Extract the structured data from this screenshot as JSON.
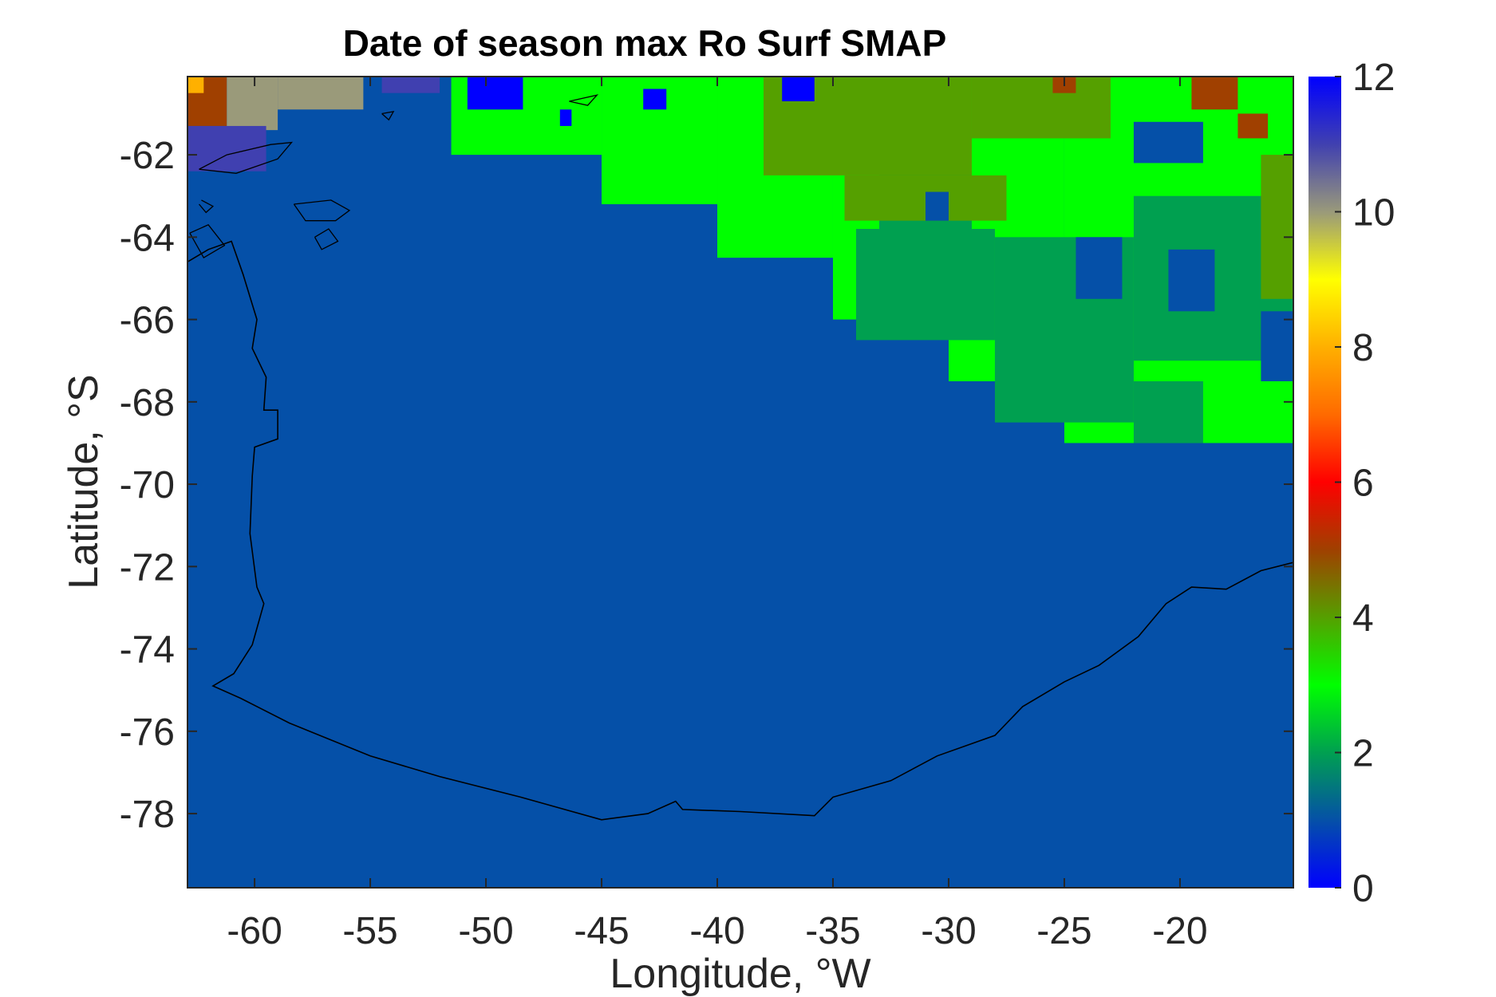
{
  "chart_data": {
    "type": "heatmap",
    "title": "Date of season max Ro Surf SMAP",
    "xlabel": "Longitude, °W",
    "ylabel": "Latitude, °S",
    "xlim": [
      -62.9,
      -15.1
    ],
    "ylim": [
      -79.8,
      -60.1
    ],
    "x_ticks": [
      -60,
      -55,
      -50,
      -45,
      -40,
      -35,
      -30,
      -25,
      -20
    ],
    "x_tick_labels": [
      "-60",
      "-55",
      "-50",
      "-45",
      "-40",
      "-35",
      "-30",
      "-25",
      "-20"
    ],
    "y_ticks": [
      -62,
      -64,
      -66,
      -68,
      -70,
      -72,
      -74,
      -76,
      -78
    ],
    "y_tick_labels": [
      "-62",
      "-64",
      "-66",
      "-68",
      "-70",
      "-72",
      "-74",
      "-76",
      "-78"
    ],
    "colorbar": {
      "min": 0,
      "max": 12,
      "ticks": [
        0,
        2,
        4,
        6,
        8,
        10,
        12
      ],
      "tick_labels": [
        "0",
        "2",
        "4",
        "6",
        "8",
        "10",
        "12"
      ],
      "stops": [
        {
          "value": 0,
          "color": "#0000ff"
        },
        {
          "value": 1,
          "color": "#0550a8"
        },
        {
          "value": 2,
          "color": "#00a050"
        },
        {
          "value": 3,
          "color": "#00ff00"
        },
        {
          "value": 4,
          "color": "#55a000"
        },
        {
          "value": 5,
          "color": "#a04000"
        },
        {
          "value": 6,
          "color": "#ff0000"
        },
        {
          "value": 7,
          "color": "#ff6a00"
        },
        {
          "value": 8,
          "color": "#ffb000"
        },
        {
          "value": 9,
          "color": "#ffff00"
        },
        {
          "value": 10,
          "color": "#9a9a7a"
        },
        {
          "value": 11,
          "color": "#4040b0"
        },
        {
          "value": 12,
          "color": "#0000ff"
        }
      ]
    },
    "background_value": 1,
    "regions": [
      {
        "value": 3,
        "lon": [
          -51.5,
          -45
        ],
        "lat": [
          -62,
          -60.1
        ]
      },
      {
        "value": 3,
        "lon": [
          -45,
          -40
        ],
        "lat": [
          -63.2,
          -60.1
        ]
      },
      {
        "value": 3,
        "lon": [
          -40,
          -35
        ],
        "lat": [
          -64.5,
          -60.1
        ]
      },
      {
        "value": 3,
        "lon": [
          -35,
          -30
        ],
        "lat": [
          -66,
          -60.1
        ]
      },
      {
        "value": 3,
        "lon": [
          -30,
          -25
        ],
        "lat": [
          -67.5,
          -60.1
        ]
      },
      {
        "value": 3,
        "lon": [
          -25,
          -15.1
        ],
        "lat": [
          -69,
          -60.1
        ]
      },
      {
        "value": 2,
        "lon": [
          -34,
          -28
        ],
        "lat": [
          -66.5,
          -63.8
        ]
      },
      {
        "value": 2,
        "lon": [
          -28,
          -22
        ],
        "lat": [
          -68.5,
          -64
        ]
      },
      {
        "value": 2,
        "lon": [
          -22,
          -15.1
        ],
        "lat": [
          -67,
          -63
        ]
      },
      {
        "value": 2,
        "lon": [
          -33,
          -29
        ],
        "lat": [
          -64,
          -62.4
        ]
      },
      {
        "value": 2,
        "lon": [
          -22,
          -19
        ],
        "lat": [
          -69,
          -67.5
        ]
      },
      {
        "value": 4,
        "lon": [
          -38,
          -29
        ],
        "lat": [
          -62.5,
          -60.1
        ]
      },
      {
        "value": 4,
        "lon": [
          -34.5,
          -27.5
        ],
        "lat": [
          -63.6,
          -62.5
        ]
      },
      {
        "value": 4,
        "lon": [
          -29,
          -23
        ],
        "lat": [
          -61.6,
          -60.1
        ]
      },
      {
        "value": 4,
        "lon": [
          -16.5,
          -15.1
        ],
        "lat": [
          -65.5,
          -62
        ]
      },
      {
        "value": 1,
        "lon": [
          -22,
          -19
        ],
        "lat": [
          -62.2,
          -61.2
        ]
      },
      {
        "value": 1,
        "lon": [
          -24.5,
          -22.5
        ],
        "lat": [
          -65.5,
          -64
        ]
      },
      {
        "value": 1,
        "lon": [
          -20.5,
          -18.5
        ],
        "lat": [
          -65.8,
          -64.3
        ]
      },
      {
        "value": 1,
        "lon": [
          -16.5,
          -15.1
        ],
        "lat": [
          -67.5,
          -65.8
        ]
      },
      {
        "value": 1,
        "lon": [
          -31,
          -30
        ],
        "lat": [
          -63.6,
          -62.9
        ]
      },
      {
        "value": 0,
        "lon": [
          -50.8,
          -48.4
        ],
        "lat": [
          -60.9,
          -60.1
        ]
      },
      {
        "value": 0,
        "lon": [
          -43.2,
          -42.2
        ],
        "lat": [
          -60.9,
          -60.4
        ]
      },
      {
        "value": 0,
        "lon": [
          -37.2,
          -35.8
        ],
        "lat": [
          -60.7,
          -60.1
        ]
      },
      {
        "value": 0,
        "lon": [
          -46.8,
          -46.3
        ],
        "lat": [
          -61.3,
          -60.9
        ]
      },
      {
        "value": 5,
        "lon": [
          -62.9,
          -61.2
        ],
        "lat": [
          -61.3,
          -60.1
        ]
      },
      {
        "value": 5,
        "lon": [
          -19.5,
          -17.5
        ],
        "lat": [
          -60.9,
          -60.1
        ]
      },
      {
        "value": 5,
        "lon": [
          -17.5,
          -16.2
        ],
        "lat": [
          -61.6,
          -61
        ]
      },
      {
        "value": 5,
        "lon": [
          -25.5,
          -24.5
        ],
        "lat": [
          -60.5,
          -60.1
        ]
      },
      {
        "value": 10,
        "lon": [
          -61.2,
          -59
        ],
        "lat": [
          -61.4,
          -60.1
        ]
      },
      {
        "value": 10,
        "lon": [
          -59,
          -55.3
        ],
        "lat": [
          -60.9,
          -60.1
        ]
      },
      {
        "value": 11,
        "lon": [
          -62.9,
          -59.5
        ],
        "lat": [
          -62.4,
          -61.3
        ]
      },
      {
        "value": 11,
        "lon": [
          -54.5,
          -52
        ],
        "lat": [
          -60.5,
          -60.1
        ]
      },
      {
        "value": 8,
        "lon": [
          -62.9,
          -62.2
        ],
        "lat": [
          -60.5,
          -60.1
        ]
      }
    ],
    "coastline": [
      [
        -62.9,
        -64.6
      ],
      [
        -62,
        -64.3
      ],
      [
        -61,
        -64.1
      ],
      [
        -60.5,
        -64.9
      ],
      [
        -59.9,
        -66.0
      ],
      [
        -60.1,
        -66.7
      ],
      [
        -59.5,
        -67.4
      ],
      [
        -59.6,
        -68.2
      ],
      [
        -59.0,
        -68.2
      ],
      [
        -59.0,
        -68.9
      ],
      [
        -60.0,
        -69.1
      ],
      [
        -60.1,
        -69.8
      ],
      [
        -60.2,
        -71.2
      ],
      [
        -59.9,
        -72.5
      ],
      [
        -59.6,
        -72.9
      ],
      [
        -60.1,
        -73.9
      ],
      [
        -60.9,
        -74.6
      ],
      [
        -61.8,
        -74.9
      ],
      [
        -60.6,
        -75.2
      ],
      [
        -58.5,
        -75.8
      ],
      [
        -55.0,
        -76.6
      ],
      [
        -52.0,
        -77.1
      ],
      [
        -48.5,
        -77.6
      ],
      [
        -45.0,
        -78.15
      ],
      [
        -43.0,
        -78.0
      ],
      [
        -41.8,
        -77.7
      ],
      [
        -41.5,
        -77.9
      ],
      [
        -39.0,
        -77.95
      ],
      [
        -35.8,
        -78.05
      ],
      [
        -35.0,
        -77.6
      ],
      [
        -32.5,
        -77.2
      ],
      [
        -30.5,
        -76.6
      ],
      [
        -28.0,
        -76.1
      ],
      [
        -26.8,
        -75.4
      ],
      [
        -25.0,
        -74.8
      ],
      [
        -23.5,
        -74.4
      ],
      [
        -21.8,
        -73.7
      ],
      [
        -20.6,
        -72.9
      ],
      [
        -19.5,
        -72.5
      ],
      [
        -18.0,
        -72.55
      ],
      [
        -16.5,
        -72.1
      ],
      [
        -15.1,
        -71.9
      ]
    ],
    "islands": [
      [
        [
          -62.4,
          -62.35
        ],
        [
          -61.2,
          -62.0
        ],
        [
          -59.3,
          -61.75
        ],
        [
          -58.4,
          -61.7
        ],
        [
          -59.0,
          -62.1
        ],
        [
          -60.8,
          -62.45
        ],
        [
          -62.4,
          -62.35
        ]
      ],
      [
        [
          -62.3,
          -63.1
        ],
        [
          -61.8,
          -63.25
        ],
        [
          -62.1,
          -63.4
        ],
        [
          -62.4,
          -63.2
        ]
      ],
      [
        [
          -58.3,
          -63.2
        ],
        [
          -56.7,
          -63.1
        ],
        [
          -55.9,
          -63.35
        ],
        [
          -56.5,
          -63.6
        ],
        [
          -57.8,
          -63.6
        ],
        [
          -58.3,
          -63.2
        ]
      ],
      [
        [
          -57.4,
          -64.0
        ],
        [
          -56.8,
          -63.8
        ],
        [
          -56.4,
          -64.1
        ],
        [
          -57.1,
          -64.3
        ],
        [
          -57.4,
          -64.0
        ]
      ],
      [
        [
          -62.8,
          -63.9
        ],
        [
          -62.0,
          -63.7
        ],
        [
          -61.3,
          -64.2
        ],
        [
          -62.2,
          -64.5
        ],
        [
          -62.8,
          -63.9
        ]
      ],
      [
        [
          -54.5,
          -61.0
        ],
        [
          -54.0,
          -60.95
        ],
        [
          -54.2,
          -61.15
        ],
        [
          -54.5,
          -61.0
        ]
      ],
      [
        [
          -46.4,
          -60.7
        ],
        [
          -45.2,
          -60.55
        ],
        [
          -45.6,
          -60.8
        ],
        [
          -46.4,
          -60.7
        ]
      ]
    ]
  }
}
